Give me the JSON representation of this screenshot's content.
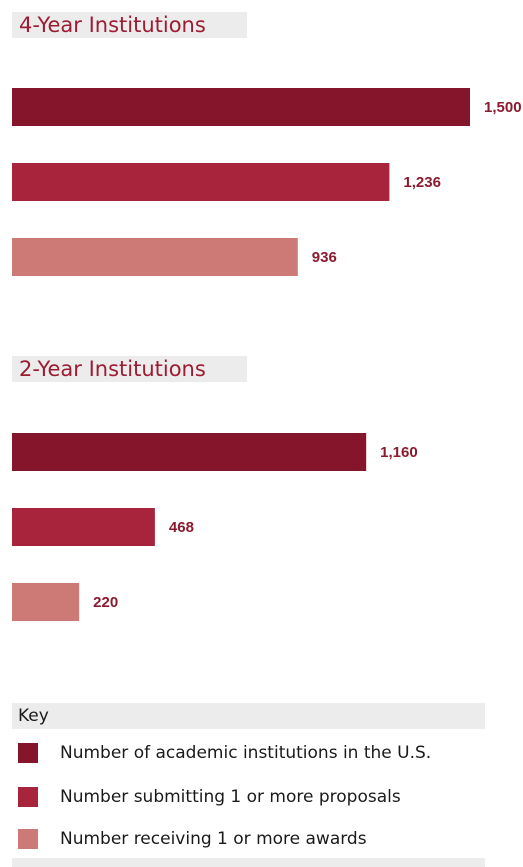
{
  "colors": {
    "academic": "#84152b",
    "submitting": "#a8243d",
    "receiving": "#cd7a77",
    "label": "#8b1a2e",
    "title": "#9e1b32"
  },
  "chart_data": [
    {
      "type": "bar",
      "orientation": "horizontal",
      "title": "4-Year Institutions",
      "categories": [
        "Number of academic institutions in the U.S.",
        "Number submitting 1 or more proposals",
        "Number receiving 1 or more awards"
      ],
      "values": [
        1500,
        1236,
        936
      ],
      "value_labels": [
        "1,500",
        "1,236",
        "936"
      ],
      "xlim": [
        0,
        1500
      ],
      "grid": false
    },
    {
      "type": "bar",
      "orientation": "horizontal",
      "title": "2-Year Institutions",
      "categories": [
        "Number of academic institutions in the U.S.",
        "Number submitting 1 or more proposals",
        "Number receiving 1 or more awards"
      ],
      "values": [
        1160,
        468,
        220
      ],
      "value_labels": [
        "1,160",
        "468",
        "220"
      ],
      "xlim": [
        0,
        1500
      ],
      "grid": false
    }
  ],
  "key": {
    "title": "Key",
    "items": [
      "Number of academic institutions in the U.S.",
      "Number submitting 1 or more proposals",
      "Number receiving 1 or more awards"
    ]
  }
}
